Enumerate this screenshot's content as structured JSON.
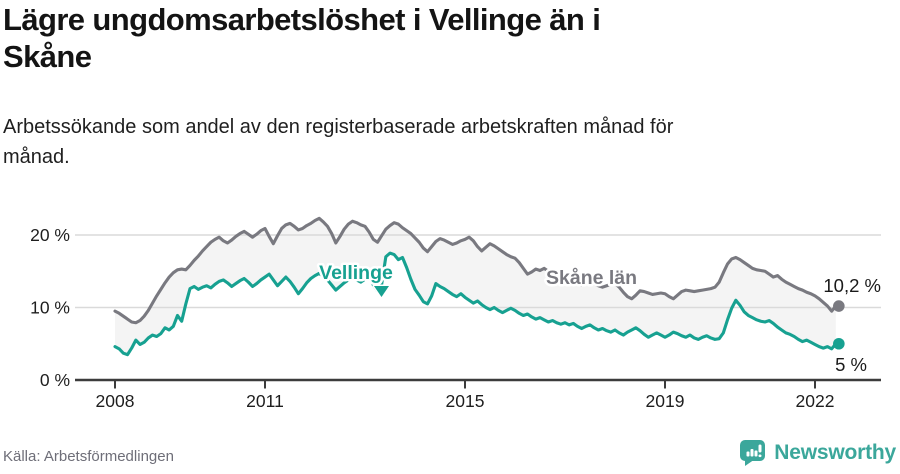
{
  "header": {
    "title_lines": [
      "Lägre ungdomsarbetslöshet i Vellinge än i",
      "Skåne"
    ],
    "subtitle_lines": [
      "Arbetssökande som andel av den registerbaserade arbetskraften månad för",
      "månad."
    ]
  },
  "footer": {
    "source": "Källa: Arbetsförmedlingen",
    "brand": "Newsworthy"
  },
  "colors": {
    "vellinge_teal": "#17A191",
    "skane_gray": "#797980",
    "band_fill": "#F4F4F4",
    "gridline": "#DADADA",
    "axis": "#3C3C3C",
    "tick_text": "#1E1E1E",
    "end_label_text": "#1A1A1A",
    "brand_teal": "#3BA79B"
  },
  "chart_data": {
    "type": "line",
    "x_unit": "month",
    "x_start": "2008-01",
    "x_end": "2022-06",
    "x_tick_years": [
      2008,
      2011,
      2015,
      2019,
      2022
    ],
    "x_tick_labels": [
      "2008",
      "2011",
      "2015",
      "2019",
      "2022"
    ],
    "y_ticks": [
      0,
      10,
      20
    ],
    "y_tick_labels": [
      "0 %",
      "10 %",
      "20 %"
    ],
    "ylim": [
      0,
      24
    ],
    "grid": "horizontal",
    "legend_position": "inline-labels",
    "series": [
      {
        "name": "Skåne län",
        "color": "#797980",
        "end_label": "10,2 %",
        "end_value": 10.2,
        "values": [
          9.5,
          9.2,
          8.8,
          8.4,
          8.0,
          7.9,
          8.2,
          8.8,
          9.6,
          10.6,
          11.6,
          12.5,
          13.4,
          14.2,
          14.8,
          15.2,
          15.3,
          15.2,
          15.8,
          16.5,
          17.1,
          17.8,
          18.4,
          19.0,
          19.4,
          19.7,
          19.2,
          18.9,
          19.3,
          19.8,
          20.2,
          20.5,
          20.1,
          19.7,
          20.1,
          20.6,
          20.9,
          19.8,
          18.8,
          19.9,
          20.9,
          21.4,
          21.6,
          21.2,
          20.7,
          20.9,
          21.3,
          21.6,
          22.0,
          22.3,
          21.8,
          21.2,
          20.2,
          18.9,
          19.8,
          20.8,
          21.5,
          21.9,
          21.7,
          21.4,
          21.2,
          20.4,
          19.4,
          19.0,
          19.9,
          20.8,
          21.3,
          21.7,
          21.5,
          21.0,
          20.6,
          20.2,
          19.6,
          19.0,
          18.2,
          17.7,
          18.4,
          19.1,
          19.5,
          19.3,
          19.0,
          18.7,
          18.9,
          19.2,
          19.4,
          19.7,
          19.2,
          18.4,
          17.8,
          18.3,
          18.8,
          18.5,
          18.1,
          17.7,
          17.3,
          17.0,
          16.8,
          16.2,
          15.4,
          14.6,
          14.9,
          15.3,
          15.1,
          15.4,
          15.0,
          14.7,
          14.4,
          14.2,
          14.0,
          13.8,
          13.5,
          13.3,
          13.1,
          13.4,
          13.6,
          13.3,
          13.0,
          12.8,
          13.0,
          13.2,
          13.3,
          12.8,
          12.1,
          11.5,
          11.2,
          11.7,
          12.3,
          12.2,
          12.0,
          11.8,
          11.9,
          12.0,
          11.9,
          11.5,
          11.2,
          11.7,
          12.2,
          12.4,
          12.3,
          12.2,
          12.3,
          12.4,
          12.5,
          12.6,
          12.8,
          13.5,
          14.8,
          16.0,
          16.7,
          16.9,
          16.6,
          16.2,
          15.8,
          15.4,
          15.2,
          15.1,
          15.0,
          14.6,
          14.2,
          14.4,
          13.9,
          13.5,
          13.2,
          12.9,
          12.6,
          12.4,
          12.1,
          11.9,
          11.6,
          11.2,
          10.7,
          10.2,
          9.5,
          10.2
        ]
      },
      {
        "name": "Vellinge",
        "color": "#17A191",
        "end_label": "5 %",
        "end_value": 5,
        "values": [
          4.6,
          4.3,
          3.7,
          3.5,
          4.4,
          5.5,
          4.9,
          5.2,
          5.8,
          6.2,
          6.0,
          6.4,
          7.2,
          6.9,
          7.4,
          8.9,
          8.1,
          10.5,
          12.6,
          12.9,
          12.5,
          12.8,
          13.0,
          12.7,
          13.2,
          13.6,
          13.8,
          13.4,
          12.9,
          13.3,
          13.7,
          14.0,
          13.5,
          12.9,
          13.3,
          13.8,
          14.2,
          14.6,
          13.8,
          13.0,
          13.6,
          14.2,
          13.6,
          12.8,
          11.9,
          12.6,
          13.4,
          14.0,
          14.4,
          14.7,
          14.3,
          13.8,
          13.1,
          12.4,
          12.9,
          13.4,
          13.8,
          14.1,
          13.8,
          13.5,
          13.9,
          14.2,
          13.1,
          12.3,
          13.2,
          17.0,
          17.5,
          17.3,
          16.6,
          16.9,
          15.5,
          13.9,
          12.5,
          11.7,
          10.8,
          10.5,
          11.6,
          13.3,
          12.9,
          12.6,
          12.2,
          11.8,
          11.5,
          11.9,
          11.4,
          11.0,
          10.6,
          10.9,
          10.4,
          10.0,
          9.7,
          10.0,
          9.6,
          9.3,
          9.6,
          9.9,
          9.6,
          9.2,
          8.9,
          9.1,
          8.7,
          8.4,
          8.6,
          8.3,
          8.0,
          8.2,
          7.9,
          7.7,
          7.9,
          7.6,
          7.8,
          7.4,
          7.1,
          7.4,
          7.6,
          7.2,
          6.9,
          7.1,
          6.8,
          6.6,
          6.9,
          6.5,
          6.2,
          6.6,
          6.9,
          7.2,
          6.8,
          6.3,
          5.9,
          6.2,
          6.5,
          6.2,
          5.9,
          6.2,
          6.6,
          6.4,
          6.1,
          5.9,
          6.2,
          5.8,
          5.6,
          5.9,
          6.1,
          5.8,
          5.6,
          5.7,
          6.5,
          8.3,
          9.9,
          11.0,
          10.3,
          9.4,
          8.9,
          8.6,
          8.3,
          8.1,
          8.0,
          8.2,
          7.8,
          7.3,
          6.9,
          6.5,
          6.3,
          6.0,
          5.6,
          5.3,
          5.5,
          5.2,
          4.9,
          4.6,
          4.4,
          4.6,
          4.3,
          5.0
        ]
      }
    ]
  }
}
